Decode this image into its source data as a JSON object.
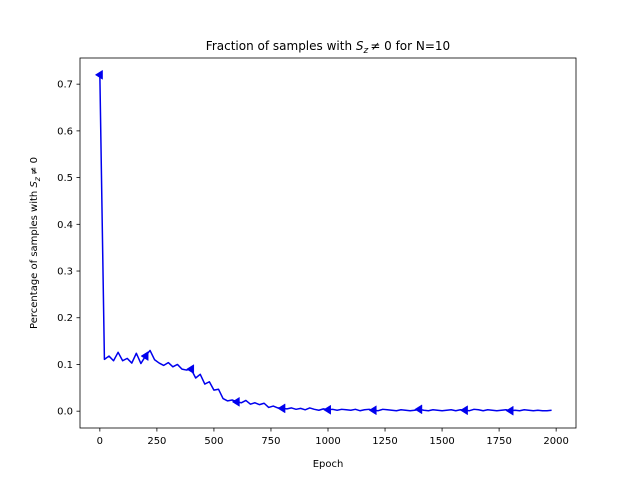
{
  "chart_data": {
    "type": "line",
    "title_parts": {
      "prefix": "Fraction of samples with ",
      "math_symbol": "S",
      "math_subscript": "z",
      "relation": "≠ 0",
      "suffix": " for N=10"
    },
    "xlabel": "Epoch",
    "ylabel_parts": {
      "prefix": "Percentage of samples with ",
      "math_symbol": "S",
      "math_subscript": "z",
      "relation": "≠ 0"
    },
    "xlim": [
      -87,
      2087
    ],
    "ylim": [
      -0.036,
      0.756
    ],
    "xticks": [
      0,
      250,
      500,
      750,
      1000,
      1250,
      1500,
      1750,
      2000
    ],
    "xtick_labels": [
      "0",
      "250",
      "500",
      "750",
      "1000",
      "1250",
      "1500",
      "1750",
      "2000"
    ],
    "yticks": [
      0.0,
      0.1,
      0.2,
      0.3,
      0.4,
      0.5,
      0.6,
      0.7
    ],
    "ytick_labels": [
      "0.0",
      "0.1",
      "0.2",
      "0.3",
      "0.4",
      "0.5",
      "0.6",
      "0.7"
    ],
    "grid": false,
    "legend": false,
    "marker": "triangle-left",
    "line_color": "#0000ee",
    "series": [
      {
        "x": [
          0,
          20,
          40,
          60,
          80,
          100,
          120,
          140,
          160,
          180,
          200,
          220,
          240,
          260,
          280,
          300,
          320,
          340,
          360,
          380,
          400,
          420,
          440,
          460,
          480,
          500,
          520,
          540,
          560,
          580,
          600,
          620,
          640,
          660,
          680,
          700,
          720,
          740,
          760,
          780,
          800,
          820,
          840,
          860,
          880,
          900,
          920,
          940,
          960,
          980,
          1000,
          1020,
          1040,
          1060,
          1080,
          1100,
          1120,
          1140,
          1160,
          1180,
          1200,
          1220,
          1240,
          1260,
          1280,
          1300,
          1320,
          1340,
          1360,
          1380,
          1400,
          1420,
          1440,
          1460,
          1480,
          1500,
          1520,
          1540,
          1560,
          1580,
          1600,
          1620,
          1640,
          1660,
          1680,
          1700,
          1720,
          1740,
          1760,
          1780,
          1800,
          1820,
          1840,
          1860,
          1880,
          1900,
          1920,
          1940,
          1960,
          1980
        ],
        "y": [
          0.72,
          0.111,
          0.118,
          0.108,
          0.126,
          0.108,
          0.113,
          0.103,
          0.124,
          0.102,
          0.118,
          0.13,
          0.11,
          0.103,
          0.098,
          0.104,
          0.095,
          0.1,
          0.09,
          0.088,
          0.09,
          0.071,
          0.079,
          0.058,
          0.063,
          0.045,
          0.047,
          0.027,
          0.022,
          0.024,
          0.02,
          0.018,
          0.023,
          0.015,
          0.018,
          0.014,
          0.017,
          0.008,
          0.011,
          0.007,
          0.006,
          0.005,
          0.007,
          0.004,
          0.006,
          0.003,
          0.007,
          0.004,
          0.002,
          0.005,
          0.003,
          0.004,
          0.002,
          0.004,
          0.003,
          0.002,
          0.004,
          0.001,
          0.003,
          0.004,
          0.002,
          0.001,
          0.004,
          0.003,
          0.002,
          0.001,
          0.003,
          0.002,
          0.001,
          0.002,
          0.004,
          0.002,
          0.001,
          0.003,
          0.002,
          0.001,
          0.002,
          0.003,
          0.001,
          0.003,
          0.002,
          0.001,
          0.004,
          0.003,
          0.001,
          0.003,
          0.002,
          0.001,
          0.002,
          0.003,
          0.001,
          0.002,
          0.001,
          0.003,
          0.002,
          0.001,
          0.002,
          0.001,
          0.001,
          0.002
        ]
      }
    ],
    "marker_every": 10
  }
}
